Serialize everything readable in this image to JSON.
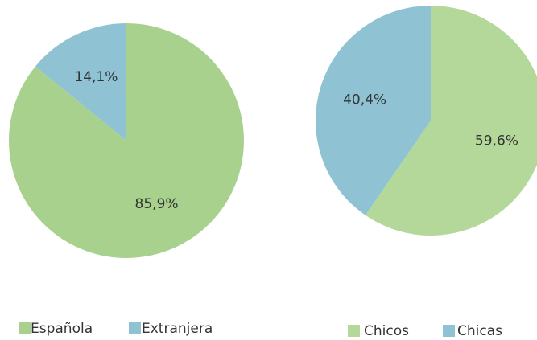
{
  "chart_data": [
    {
      "type": "pie",
      "categories": [
        "Española",
        "Extranjera"
      ],
      "values": [
        85.9,
        14.1
      ],
      "value_labels": [
        "85,9%",
        "14,1%"
      ],
      "colors": [
        "#a9d18e",
        "#8fc3d3"
      ]
    },
    {
      "type": "pie",
      "categories": [
        "Chicos",
        "Chicas"
      ],
      "values": [
        59.6,
        40.4
      ],
      "value_labels": [
        "59,6%",
        "40,4%"
      ],
      "colors": [
        "#b4d79a",
        "#8fc3d3"
      ]
    }
  ]
}
